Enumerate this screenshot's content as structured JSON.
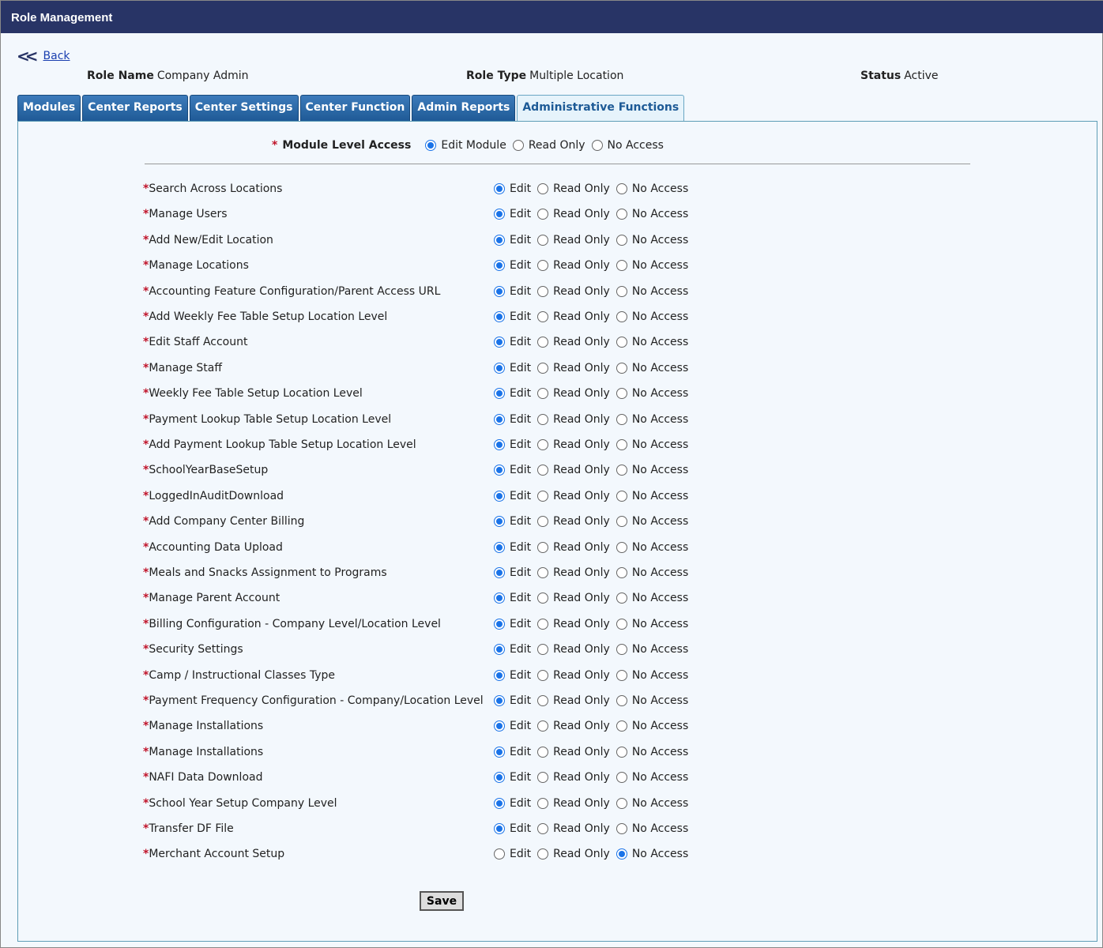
{
  "header": {
    "title": "Role Management"
  },
  "back": {
    "icon": "double-chevron-left-icon",
    "label": "Back"
  },
  "info": {
    "role_name_label": "Role Name",
    "role_name": "Company Admin",
    "role_type_label": "Role Type",
    "role_type": "Multiple Location",
    "status_label": "Status",
    "status": "Active"
  },
  "tabs": [
    "Modules",
    "Center Reports",
    "Center Settings",
    "Center Function",
    "Admin Reports",
    "Administrative Functions"
  ],
  "active_tab": "Administrative Functions",
  "module_access": {
    "required": "*",
    "label": "Module Level Access",
    "options": [
      "Edit Module",
      "Read Only",
      "No Access"
    ],
    "selected": "Edit Module"
  },
  "option_labels": [
    "Edit",
    "Read Only",
    "No Access"
  ],
  "rows": [
    {
      "name": "Search Across Locations",
      "value": "Edit"
    },
    {
      "name": "Manage Users",
      "value": "Edit"
    },
    {
      "name": "Add New/Edit Location",
      "value": "Edit"
    },
    {
      "name": "Manage Locations",
      "value": "Edit"
    },
    {
      "name": "Accounting Feature Configuration/Parent Access URL",
      "value": "Edit"
    },
    {
      "name": "Add Weekly Fee Table Setup Location Level",
      "value": "Edit"
    },
    {
      "name": "Edit Staff Account",
      "value": "Edit"
    },
    {
      "name": "Manage Staff",
      "value": "Edit"
    },
    {
      "name": "Weekly Fee Table Setup Location Level",
      "value": "Edit"
    },
    {
      "name": "Payment Lookup Table Setup Location Level",
      "value": "Edit"
    },
    {
      "name": "Add Payment Lookup Table Setup Location Level",
      "value": "Edit"
    },
    {
      "name": "SchoolYearBaseSetup",
      "value": "Edit"
    },
    {
      "name": "LoggedInAuditDownload",
      "value": "Edit"
    },
    {
      "name": "Add Company Center Billing",
      "value": "Edit"
    },
    {
      "name": "Accounting Data Upload",
      "value": "Edit"
    },
    {
      "name": "Meals and Snacks Assignment to Programs",
      "value": "Edit"
    },
    {
      "name": "Manage Parent Account",
      "value": "Edit"
    },
    {
      "name": "Billing Configuration - Company Level/Location Level",
      "value": "Edit"
    },
    {
      "name": "Security Settings",
      "value": "Edit"
    },
    {
      "name": "Camp / Instructional Classes Type",
      "value": "Edit"
    },
    {
      "name": "Payment Frequency Configuration - Company/Location Level",
      "value": "Edit"
    },
    {
      "name": "Manage Installations",
      "value": "Edit"
    },
    {
      "name": "Manage Installations",
      "value": "Edit"
    },
    {
      "name": "NAFI Data Download",
      "value": "Edit"
    },
    {
      "name": "School Year Setup Company Level",
      "value": "Edit"
    },
    {
      "name": "Transfer DF File",
      "value": "Edit"
    },
    {
      "name": "Merchant Account Setup",
      "value": "No Access"
    }
  ],
  "save_label": "Save",
  "colors": {
    "header": "#283466",
    "tab": "#2a6aa8",
    "radio": "#1a73e8",
    "required": "#c0142a"
  }
}
